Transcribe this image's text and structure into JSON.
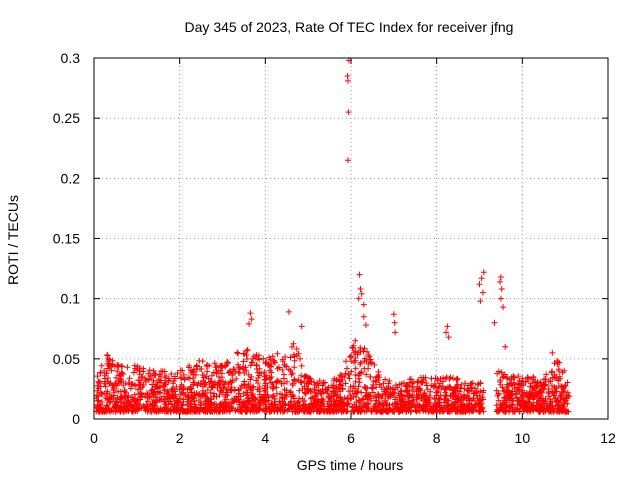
{
  "chart_data": {
    "type": "scatter",
    "title": "Day 345 of 2023, Rate Of TEC Index for receiver jfng",
    "xlabel": "GPS time / hours",
    "ylabel": "ROTI / TECUs",
    "xlim": [
      0,
      12
    ],
    "ylim": [
      0,
      0.3
    ],
    "xticks": [
      "0",
      "2",
      "4",
      "6",
      "8",
      "10",
      "12"
    ],
    "yticks": [
      "0",
      "0.05",
      "0.1",
      "0.15",
      "0.2",
      "0.25",
      "0.3"
    ],
    "grid": true,
    "marker": "+",
    "color": "#ff0000",
    "data_gap": [
      9.1,
      9.4
    ],
    "x_end": 11.1,
    "baseline_envelope": [
      [
        0.0,
        0.03
      ],
      [
        0.3,
        0.055
      ],
      [
        0.5,
        0.045
      ],
      [
        1.0,
        0.045
      ],
      [
        1.5,
        0.04
      ],
      [
        2.0,
        0.04
      ],
      [
        2.5,
        0.05
      ],
      [
        3.0,
        0.045
      ],
      [
        3.5,
        0.06
      ],
      [
        4.0,
        0.05
      ],
      [
        4.5,
        0.06
      ],
      [
        4.7,
        0.065
      ],
      [
        5.0,
        0.035
      ],
      [
        5.5,
        0.03
      ],
      [
        5.8,
        0.04
      ],
      [
        6.0,
        0.06
      ],
      [
        6.3,
        0.065
      ],
      [
        6.7,
        0.035
      ],
      [
        7.0,
        0.03
      ],
      [
        7.5,
        0.035
      ],
      [
        8.0,
        0.035
      ],
      [
        8.5,
        0.035
      ],
      [
        9.0,
        0.03
      ],
      [
        9.4,
        0.04
      ],
      [
        10.0,
        0.035
      ],
      [
        10.5,
        0.035
      ],
      [
        10.8,
        0.05
      ],
      [
        11.1,
        0.035
      ]
    ],
    "notable_points": [
      {
        "x": 5.95,
        "y": 0.298
      },
      {
        "x": 5.92,
        "y": 0.285
      },
      {
        "x": 5.93,
        "y": 0.281
      },
      {
        "x": 5.94,
        "y": 0.255
      },
      {
        "x": 5.93,
        "y": 0.215
      },
      {
        "x": 6.2,
        "y": 0.12
      },
      {
        "x": 6.22,
        "y": 0.108
      },
      {
        "x": 6.25,
        "y": 0.104
      },
      {
        "x": 6.18,
        "y": 0.1
      },
      {
        "x": 6.3,
        "y": 0.095
      },
      {
        "x": 9.1,
        "y": 0.122
      },
      {
        "x": 9.05,
        "y": 0.117
      },
      {
        "x": 9.0,
        "y": 0.112
      },
      {
        "x": 9.08,
        "y": 0.105
      },
      {
        "x": 9.02,
        "y": 0.098
      },
      {
        "x": 9.5,
        "y": 0.118
      },
      {
        "x": 9.48,
        "y": 0.114
      },
      {
        "x": 9.52,
        "y": 0.108
      },
      {
        "x": 9.5,
        "y": 0.1
      },
      {
        "x": 9.55,
        "y": 0.093
      },
      {
        "x": 4.55,
        "y": 0.089
      },
      {
        "x": 4.85,
        "y": 0.077
      },
      {
        "x": 3.65,
        "y": 0.088
      },
      {
        "x": 3.68,
        "y": 0.083
      },
      {
        "x": 3.62,
        "y": 0.079
      },
      {
        "x": 7.0,
        "y": 0.087
      },
      {
        "x": 7.02,
        "y": 0.08
      },
      {
        "x": 7.03,
        "y": 0.072
      },
      {
        "x": 8.25,
        "y": 0.077
      },
      {
        "x": 8.22,
        "y": 0.072
      },
      {
        "x": 8.28,
        "y": 0.068
      },
      {
        "x": 6.3,
        "y": 0.085
      },
      {
        "x": 6.35,
        "y": 0.078
      },
      {
        "x": 6.1,
        "y": 0.065
      },
      {
        "x": 9.35,
        "y": 0.08
      },
      {
        "x": 9.6,
        "y": 0.06
      },
      {
        "x": 10.7,
        "y": 0.055
      }
    ]
  }
}
